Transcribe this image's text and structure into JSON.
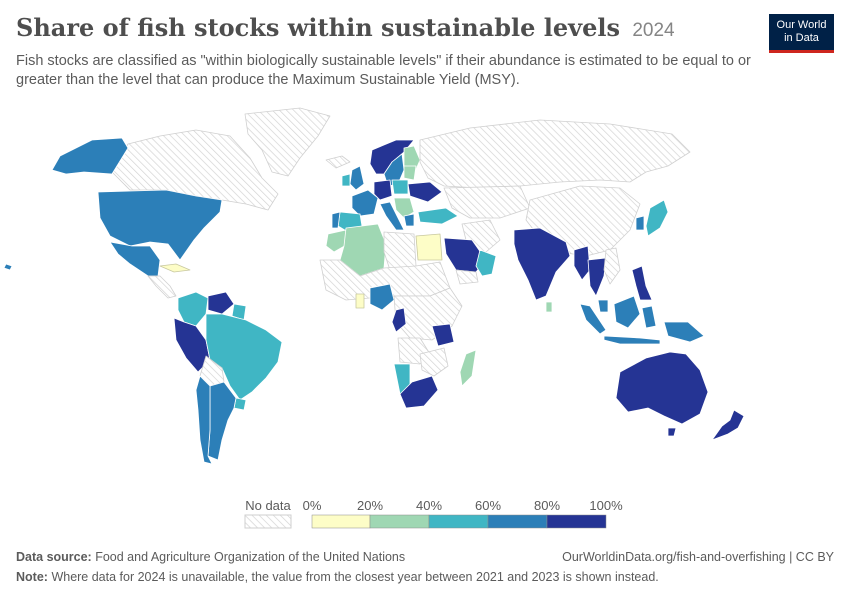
{
  "header": {
    "title": "Share of fish stocks within sustainable levels",
    "year": "2024",
    "subtitle": "Fish stocks are classified as \"within biologically sustainable levels\" if their abundance is estimated to be equal to or greater than the level that can produce the Maximum Sustainable Yield (MSY)."
  },
  "logo": {
    "line1": "Our World",
    "line2": "in Data"
  },
  "colors": {
    "no_data_stroke": "#cfcfcf",
    "bin_0_20": "#fdfdc7",
    "bin_20_40": "#9fd7b3",
    "bin_40_60": "#40b6c4",
    "bin_60_80": "#2c7fb8",
    "bin_80_100": "#253494",
    "border": "#ffffff"
  },
  "legend": {
    "no_data_label": "No data",
    "ticks": [
      "0%",
      "20%",
      "40%",
      "60%",
      "80%",
      "100%"
    ]
  },
  "footer": {
    "source_label": "Data source:",
    "source_text": "Food and Agriculture Organization of the United Nations",
    "url": "OurWorldinData.org/fish-and-overfishing | CC BY",
    "note_label": "Note:",
    "note_text": "Where data for 2024 is unavailable, the value from the closest year between 2021 and 2023 is shown instead."
  },
  "map_data": {
    "type": "choropleth",
    "region": "World",
    "countries": [
      {
        "name": "United States",
        "bin": "60-80%"
      },
      {
        "name": "Alaska (United States)",
        "bin": "60-80%"
      },
      {
        "name": "Canada",
        "bin": "no data"
      },
      {
        "name": "Greenland",
        "bin": "no data"
      },
      {
        "name": "Mexico",
        "bin": "60-80%"
      },
      {
        "name": "Cuba",
        "bin": "0-20%"
      },
      {
        "name": "Colombia",
        "bin": "40-60%"
      },
      {
        "name": "Venezuela",
        "bin": "80-100%"
      },
      {
        "name": "Brazil",
        "bin": "40-60%"
      },
      {
        "name": "Peru",
        "bin": "80-100%"
      },
      {
        "name": "Chile",
        "bin": "60-80%"
      },
      {
        "name": "Argentina",
        "bin": "60-80%"
      },
      {
        "name": "Norway",
        "bin": "80-100%"
      },
      {
        "name": "Sweden",
        "bin": "60-80%"
      },
      {
        "name": "Finland",
        "bin": "20-40%"
      },
      {
        "name": "United Kingdom",
        "bin": "60-80%"
      },
      {
        "name": "Ireland",
        "bin": "40-60%"
      },
      {
        "name": "France",
        "bin": "60-80%"
      },
      {
        "name": "Spain",
        "bin": "40-60%"
      },
      {
        "name": "Portugal",
        "bin": "60-80%"
      },
      {
        "name": "Germany",
        "bin": "80-100%"
      },
      {
        "name": "Poland",
        "bin": "40-60%"
      },
      {
        "name": "Ukraine",
        "bin": "80-100%"
      },
      {
        "name": "Italy",
        "bin": "60-80%"
      },
      {
        "name": "Turkey",
        "bin": "40-60%"
      },
      {
        "name": "Russia",
        "bin": "no data"
      },
      {
        "name": "Morocco",
        "bin": "20-40%"
      },
      {
        "name": "Algeria",
        "bin": "20-40%"
      },
      {
        "name": "Libya",
        "bin": "no data"
      },
      {
        "name": "Egypt",
        "bin": "0-20%"
      },
      {
        "name": "Saudi Arabia",
        "bin": "80-100%"
      },
      {
        "name": "Oman",
        "bin": "40-60%"
      },
      {
        "name": "Iran",
        "bin": "no data"
      },
      {
        "name": "India",
        "bin": "80-100%"
      },
      {
        "name": "Sri Lanka",
        "bin": "20-40%"
      },
      {
        "name": "Myanmar",
        "bin": "80-100%"
      },
      {
        "name": "Thailand",
        "bin": "80-100%"
      },
      {
        "name": "Malaysia",
        "bin": "60-80%"
      },
      {
        "name": "Indonesia",
        "bin": "60-80%"
      },
      {
        "name": "Philippines",
        "bin": "80-100%"
      },
      {
        "name": "Papua New Guinea",
        "bin": "60-80%"
      },
      {
        "name": "China",
        "bin": "no data"
      },
      {
        "name": "Japan",
        "bin": "40-60%"
      },
      {
        "name": "Australia",
        "bin": "80-100%"
      },
      {
        "name": "New Zealand",
        "bin": "80-100%"
      },
      {
        "name": "Nigeria",
        "bin": "60-80%"
      },
      {
        "name": "Ghana",
        "bin": "0-20%"
      },
      {
        "name": "Angola",
        "bin": "80-100%"
      },
      {
        "name": "Namibia",
        "bin": "40-60%"
      },
      {
        "name": "South Africa",
        "bin": "80-100%"
      },
      {
        "name": "Tanzania",
        "bin": "80-100%"
      },
      {
        "name": "Madagascar",
        "bin": "20-40%"
      }
    ]
  }
}
